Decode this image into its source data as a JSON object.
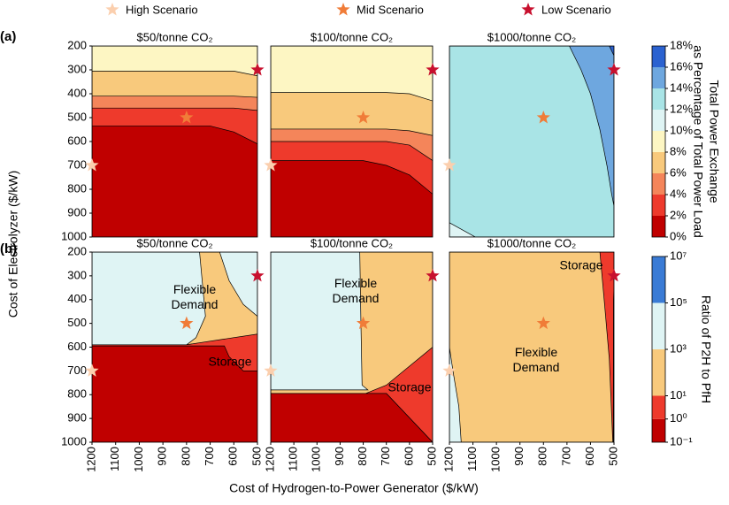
{
  "legend_label": "",
  "scenarios": [
    {
      "name": "High Scenario",
      "color": "#fbcfae",
      "x": 1200,
      "y": 700
    },
    {
      "name": "Mid Scenario",
      "color": "#f07c38",
      "x": 800,
      "y": 500
    },
    {
      "name": "Low Scenario",
      "color": "#c8102e",
      "x": 500,
      "y": 300
    }
  ],
  "panel_labels": [
    "(a)",
    "(b)"
  ],
  "xlabel": "Cost of Hydrogen-to-Power Generator ($/kW)",
  "ylabel": "Cost of Electrolyzer ($/kW)",
  "colorbars": [
    {
      "title": [
        "Total Power Exchange",
        "as Percentage of Total Power Load"
      ],
      "colors": [
        "#c00000",
        "#ee3a2c",
        "#f4855a",
        "#f8c97c",
        "#fdf6c3",
        "#dff4f4",
        "#a9e4e6",
        "#6ea7df",
        "#2b62d0"
      ],
      "lim": [
        0,
        18
      ],
      "log": false,
      "ticks": [
        {
          "value": 0,
          "label": "0%"
        },
        {
          "value": 2,
          "label": "2%"
        },
        {
          "value": 4,
          "label": "4%"
        },
        {
          "value": 6,
          "label": "6%"
        },
        {
          "value": 8,
          "label": "8%"
        },
        {
          "value": 10,
          "label": "10%"
        },
        {
          "value": 12,
          "label": "12%"
        },
        {
          "value": 14,
          "label": "14%"
        },
        {
          "value": 16,
          "label": "16%"
        },
        {
          "value": 18,
          "label": "18%"
        }
      ]
    },
    {
      "title": [
        "Ratio of P2H to PfH"
      ],
      "colors": [
        "#c00000",
        "#ee3a2c",
        "#f8c97c",
        "#dff4f4",
        "#3a7bd5"
      ],
      "lim": [
        0.1,
        10000000
      ],
      "log": true,
      "ticks": [
        {
          "value": 0.1,
          "label": "10⁻¹"
        },
        {
          "value": 1,
          "label": "10⁰"
        },
        {
          "value": 10,
          "label": "10¹"
        },
        {
          "value": 1000,
          "label": "10³"
        },
        {
          "value": 100000,
          "label": "10⁵"
        },
        {
          "value": 10000000,
          "label": "10⁷"
        }
      ]
    }
  ],
  "chart_data": [
    {
      "type": "contour",
      "title": "$50/tonne CO₂",
      "colorbar": 0,
      "xlim": [
        1200,
        500
      ],
      "ylim": [
        1000,
        200
      ],
      "yticks": [
        200,
        300,
        400,
        500,
        600,
        700,
        800,
        900,
        1000
      ],
      "annotations": [],
      "regions": [
        {
          "level": 4,
          "x": [
            1200,
            500,
            500,
            1200
          ],
          "y": [
            200,
            200,
            1000,
            1000
          ]
        },
        {
          "level": 3,
          "x": [
            1200,
            600,
            500,
            500,
            1200
          ],
          "y": [
            305,
            305,
            325,
            1000,
            1000
          ]
        },
        {
          "level": 2,
          "x": [
            1200,
            600,
            500,
            500,
            1200
          ],
          "y": [
            410,
            410,
            415,
            1000,
            1000
          ]
        },
        {
          "level": 1,
          "x": [
            1200,
            600,
            500,
            500,
            1200
          ],
          "y": [
            460,
            460,
            470,
            1000,
            1000
          ]
        },
        {
          "level": 0,
          "x": [
            1200,
            700,
            600,
            500,
            500,
            1200
          ],
          "y": [
            535,
            535,
            560,
            610,
            1000,
            1000
          ]
        }
      ]
    },
    {
      "type": "contour",
      "title": "$100/tonne CO₂",
      "colorbar": 0,
      "xlim": [
        1200,
        500
      ],
      "ylim": [
        1000,
        200
      ],
      "annotations": [],
      "regions": [
        {
          "level": 4,
          "x": [
            1200,
            500,
            500,
            1200
          ],
          "y": [
            200,
            200,
            1000,
            1000
          ]
        },
        {
          "level": 3,
          "x": [
            1200,
            700,
            600,
            500,
            500,
            1200
          ],
          "y": [
            395,
            395,
            400,
            430,
            1000,
            1000
          ]
        },
        {
          "level": 2,
          "x": [
            1200,
            700,
            600,
            500,
            500,
            1200
          ],
          "y": [
            548,
            548,
            555,
            575,
            1000,
            1000
          ]
        },
        {
          "level": 1,
          "x": [
            1200,
            700,
            600,
            500,
            500,
            1200
          ],
          "y": [
            600,
            600,
            615,
            680,
            1000,
            1000
          ]
        },
        {
          "level": 0,
          "x": [
            1200,
            800,
            700,
            600,
            500,
            500,
            1200
          ],
          "y": [
            680,
            680,
            700,
            740,
            820,
            1000,
            1000
          ]
        }
      ]
    },
    {
      "type": "contour",
      "title": "$1000/tonne CO₂",
      "colorbar": 0,
      "xlim": [
        1200,
        500
      ],
      "ylim": [
        1000,
        200
      ],
      "annotations": [],
      "regions": [
        {
          "level": 6,
          "x": [
            1200,
            500,
            500,
            1200
          ],
          "y": [
            200,
            200,
            1000,
            1000
          ]
        },
        {
          "level": 7,
          "x": [
            690,
            640,
            600,
            560,
            530,
            510,
            500,
            500
          ],
          "y": [
            200,
            300,
            400,
            550,
            700,
            820,
            870,
            200
          ]
        },
        {
          "level": 8,
          "x": [
            520,
            500,
            500
          ],
          "y": [
            200,
            240,
            200
          ]
        },
        {
          "level": 5,
          "x": [
            1200,
            1200,
            1090
          ],
          "y": [
            940,
            1000,
            1000
          ]
        }
      ]
    },
    {
      "type": "contour",
      "title": "$50/tonne CO₂",
      "colorbar": 1,
      "xlim": [
        1200,
        500
      ],
      "ylim": [
        1000,
        200
      ],
      "xticks": [
        1200,
        1100,
        1000,
        900,
        800,
        700,
        600,
        500
      ],
      "yticks": [
        200,
        300,
        400,
        500,
        600,
        700,
        800,
        900,
        1000
      ],
      "annotations": [
        {
          "text": [
            "Flexible",
            "Demand"
          ]
        },
        {
          "text": [
            "Storage"
          ]
        }
      ],
      "regions": [
        {
          "level": 3,
          "x": [
            1200,
            500,
            500,
            1200
          ],
          "y": [
            200,
            200,
            1000,
            1000
          ]
        },
        {
          "level": 2,
          "x": [
            745,
            660,
            620,
            560,
            500,
            500,
            800,
            760,
            720
          ],
          "y": [
            200,
            200,
            320,
            420,
            470,
            550,
            590,
            560,
            470
          ]
        },
        {
          "level": 1,
          "x": [
            1200,
            800,
            500,
            500,
            1200
          ],
          "y": [
            590,
            590,
            545,
            700,
            700
          ]
        },
        {
          "level": 0,
          "x": [
            1200,
            640,
            620,
            560,
            500,
            500,
            1200
          ],
          "y": [
            595,
            595,
            640,
            700,
            700,
            1000,
            1000
          ]
        }
      ]
    },
    {
      "type": "contour",
      "title": "$100/tonne CO₂",
      "colorbar": 1,
      "xlim": [
        1200,
        500
      ],
      "ylim": [
        1000,
        200
      ],
      "xticks": [
        1200,
        1100,
        1000,
        900,
        800,
        700,
        600,
        500
      ],
      "annotations": [
        {
          "text": [
            "Flexible",
            "Demand"
          ]
        },
        {
          "text": [
            "Storage"
          ]
        }
      ],
      "regions": [
        {
          "level": 2,
          "x": [
            1200,
            500,
            500,
            1200
          ],
          "y": [
            200,
            200,
            1000,
            1000
          ]
        },
        {
          "level": 3,
          "x": [
            1200,
            815,
            810,
            805,
            780,
            1200
          ],
          "y": [
            200,
            200,
            500,
            760,
            780,
            780
          ]
        },
        {
          "level": 1,
          "x": [
            500,
            600,
            700,
            790,
            700,
            500
          ],
          "y": [
            600,
            680,
            760,
            795,
            795,
            1000
          ]
        },
        {
          "level": 0,
          "x": [
            1200,
            700,
            500,
            1200
          ],
          "y": [
            795,
            795,
            1000,
            1000
          ]
        }
      ]
    },
    {
      "type": "contour",
      "title": "$1000/tonne CO₂",
      "colorbar": 1,
      "xlim": [
        1200,
        500
      ],
      "ylim": [
        1000,
        200
      ],
      "xticks": [
        1200,
        1100,
        1000,
        900,
        800,
        700,
        600,
        500
      ],
      "annotations": [
        {
          "text": [
            "Storage"
          ]
        },
        {
          "text": [
            "Flexible",
            "Demand"
          ]
        }
      ],
      "regions": [
        {
          "level": 2,
          "x": [
            1200,
            500,
            500,
            1200
          ],
          "y": [
            200,
            200,
            1000,
            1000
          ]
        },
        {
          "level": 3,
          "x": [
            1200,
            1185,
            1160,
            1150,
            1200
          ],
          "y": [
            600,
            700,
            850,
            1000,
            1000
          ]
        },
        {
          "level": 1,
          "x": [
            560,
            540,
            520,
            505,
            500,
            500
          ],
          "y": [
            200,
            420,
            650,
            1000,
            1000,
            200
          ]
        },
        {
          "level": 0,
          "x": [
            502,
            500,
            500,
            503
          ],
          "y": [
            400,
            350,
            1000,
            1000
          ]
        }
      ]
    }
  ]
}
